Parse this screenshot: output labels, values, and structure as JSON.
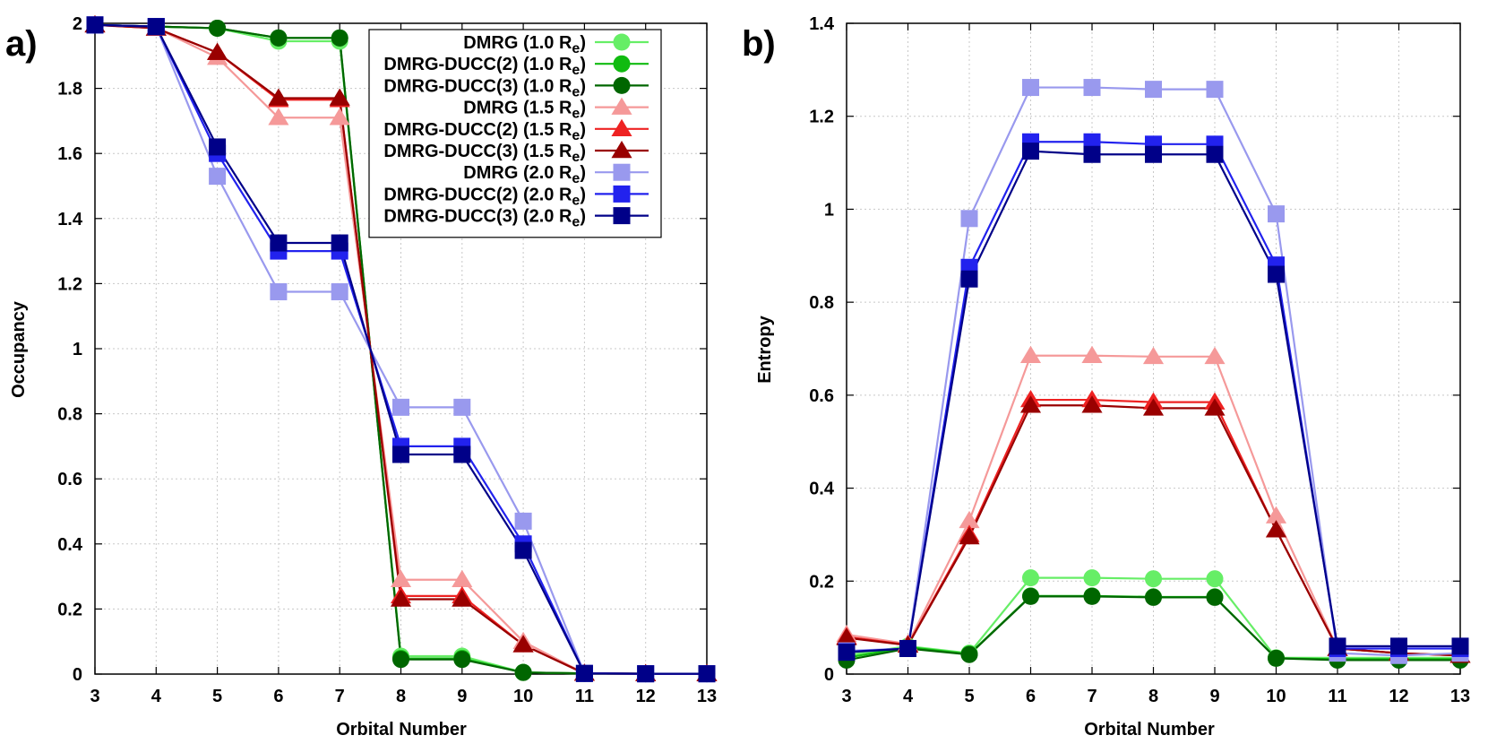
{
  "chart_data": [
    {
      "panel_label": "a)",
      "type": "line",
      "xlabel": "Orbital Number",
      "ylabel": "Occupancy",
      "xlim": [
        3,
        13
      ],
      "ylim": [
        0,
        2
      ],
      "xticks": [
        "3",
        "4",
        "5",
        "6",
        "7",
        "8",
        "9",
        "10",
        "11",
        "12",
        "13"
      ],
      "yticks": [
        "0",
        "0.2",
        "0.4",
        "0.6",
        "0.8",
        "1",
        "1.2",
        "1.4",
        "1.6",
        "1.8",
        "2"
      ],
      "grid": true,
      "legend_position": "top-right",
      "x": [
        3,
        4,
        5,
        6,
        7,
        8,
        9,
        10,
        11,
        12,
        13
      ],
      "series": [
        {
          "name": "DMRG (1.0 R",
          "sub": "e",
          "suffix": ")",
          "color": "#66ee66",
          "marker": "circle",
          "values": [
            1.995,
            1.99,
            1.985,
            1.945,
            1.945,
            0.055,
            0.055,
            0.005,
            0.002,
            0.001,
            0.001
          ]
        },
        {
          "name": "DMRG-DUCC(2) (1.0 R",
          "sub": "e",
          "suffix": ")",
          "color": "#11bb11",
          "marker": "circle",
          "values": [
            1.995,
            1.99,
            1.985,
            1.955,
            1.955,
            0.048,
            0.048,
            0.005,
            0.002,
            0.001,
            0.001
          ]
        },
        {
          "name": "DMRG-DUCC(3) (1.0 R",
          "sub": "e",
          "suffix": ")",
          "color": "#006600",
          "marker": "circle",
          "values": [
            1.995,
            1.99,
            1.985,
            1.955,
            1.955,
            0.045,
            0.045,
            0.005,
            0.002,
            0.001,
            0.001
          ]
        },
        {
          "name": "DMRG (1.5 R",
          "sub": "e",
          "suffix": ")",
          "color": "#f59999",
          "marker": "triangle",
          "values": [
            1.995,
            1.985,
            1.895,
            1.71,
            1.71,
            0.29,
            0.29,
            0.1,
            0.002,
            0.001,
            0.001
          ]
        },
        {
          "name": "DMRG-DUCC(2) (1.5 R",
          "sub": "e",
          "suffix": ")",
          "color": "#ee2222",
          "marker": "triangle",
          "values": [
            1.995,
            1.985,
            1.91,
            1.765,
            1.765,
            0.24,
            0.24,
            0.09,
            0.002,
            0.001,
            0.001
          ]
        },
        {
          "name": "DMRG-DUCC(3) (1.5 R",
          "sub": "e",
          "suffix": ")",
          "color": "#990000",
          "marker": "triangle",
          "values": [
            1.995,
            1.985,
            1.91,
            1.77,
            1.77,
            0.23,
            0.23,
            0.09,
            0.002,
            0.001,
            0.001
          ]
        },
        {
          "name": "DMRG (2.0 R",
          "sub": "e",
          "suffix": ")",
          "color": "#9999ee",
          "marker": "square",
          "values": [
            1.995,
            1.99,
            1.53,
            1.175,
            1.175,
            0.82,
            0.82,
            0.47,
            0.002,
            0.001,
            0.001
          ]
        },
        {
          "name": "DMRG-DUCC(2) (2.0 R",
          "sub": "e",
          "suffix": ")",
          "color": "#2222ee",
          "marker": "square",
          "values": [
            1.995,
            1.99,
            1.6,
            1.3,
            1.3,
            0.7,
            0.7,
            0.4,
            0.002,
            0.001,
            0.001
          ]
        },
        {
          "name": "DMRG-DUCC(3) (2.0 R",
          "sub": "e",
          "suffix": ")",
          "color": "#000088",
          "marker": "square",
          "values": [
            1.995,
            1.99,
            1.62,
            1.325,
            1.325,
            0.675,
            0.675,
            0.38,
            0.002,
            0.001,
            0.001
          ]
        }
      ]
    },
    {
      "panel_label": "b)",
      "type": "line",
      "xlabel": "Orbital Number",
      "ylabel": "Entropy",
      "xlim": [
        3,
        13
      ],
      "ylim": [
        0,
        1.4
      ],
      "xticks": [
        "3",
        "4",
        "5",
        "6",
        "7",
        "8",
        "9",
        "10",
        "11",
        "12",
        "13"
      ],
      "yticks": [
        "0",
        "0.2",
        "0.4",
        "0.6",
        "0.8",
        "1",
        "1.2",
        "1.4"
      ],
      "grid": true,
      "x": [
        3,
        4,
        5,
        6,
        7,
        8,
        9,
        10,
        11,
        12,
        13
      ],
      "series": [
        {
          "color": "#66ee66",
          "marker": "circle",
          "values": [
            0.04,
            0.06,
            0.045,
            0.207,
            0.207,
            0.205,
            0.205,
            0.035,
            0.035,
            0.035,
            0.035
          ]
        },
        {
          "color": "#11bb11",
          "marker": "circle",
          "values": [
            0.035,
            0.058,
            0.043,
            0.168,
            0.168,
            0.166,
            0.166,
            0.034,
            0.032,
            0.032,
            0.032
          ]
        },
        {
          "color": "#006600",
          "marker": "circle",
          "values": [
            0.03,
            0.055,
            0.042,
            0.167,
            0.167,
            0.165,
            0.165,
            0.034,
            0.03,
            0.03,
            0.03
          ]
        },
        {
          "color": "#f59999",
          "marker": "triangle",
          "values": [
            0.085,
            0.065,
            0.33,
            0.685,
            0.685,
            0.683,
            0.683,
            0.34,
            0.055,
            0.045,
            0.04
          ]
        },
        {
          "color": "#ee2222",
          "marker": "triangle",
          "values": [
            0.08,
            0.063,
            0.3,
            0.59,
            0.59,
            0.585,
            0.585,
            0.31,
            0.055,
            0.045,
            0.04
          ]
        },
        {
          "color": "#990000",
          "marker": "triangle",
          "values": [
            0.078,
            0.062,
            0.295,
            0.578,
            0.578,
            0.572,
            0.572,
            0.31,
            0.055,
            0.045,
            0.04
          ]
        },
        {
          "color": "#9999ee",
          "marker": "square",
          "values": [
            0.05,
            0.055,
            0.98,
            1.262,
            1.262,
            1.258,
            1.258,
            0.99,
            0.045,
            0.04,
            0.045
          ]
        },
        {
          "color": "#2222ee",
          "marker": "square",
          "values": [
            0.048,
            0.055,
            0.875,
            1.145,
            1.145,
            1.14,
            1.14,
            0.88,
            0.055,
            0.055,
            0.055
          ]
        },
        {
          "color": "#000088",
          "marker": "square",
          "values": [
            0.047,
            0.055,
            0.85,
            1.125,
            1.118,
            1.118,
            1.118,
            0.86,
            0.06,
            0.06,
            0.06
          ]
        }
      ]
    }
  ]
}
